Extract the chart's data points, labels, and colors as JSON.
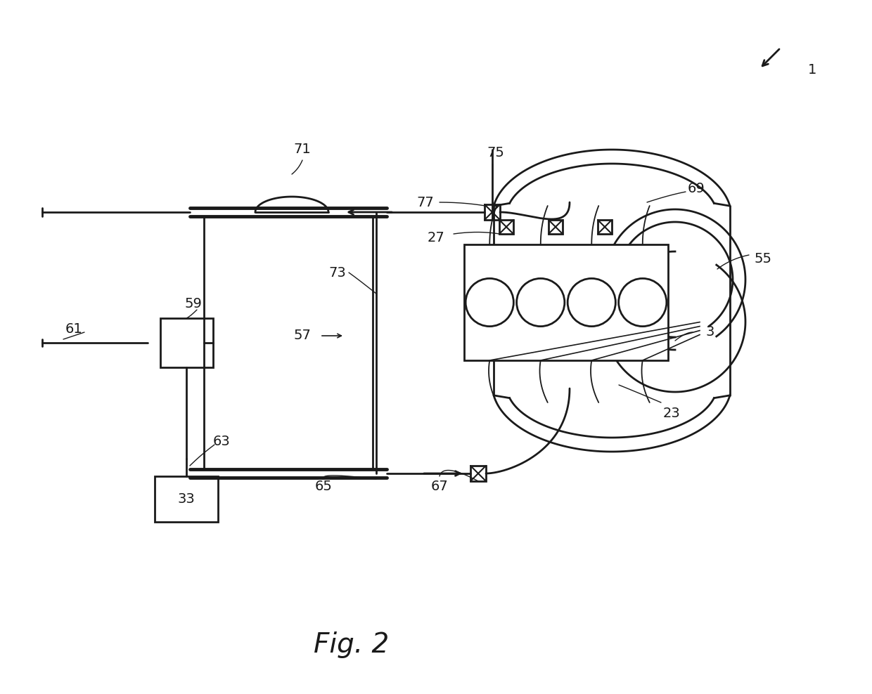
{
  "bg_color": "#ffffff",
  "line_color": "#1a1a1a",
  "fig_width": 12.4,
  "fig_height": 9.88,
  "title": "Fig. 2"
}
